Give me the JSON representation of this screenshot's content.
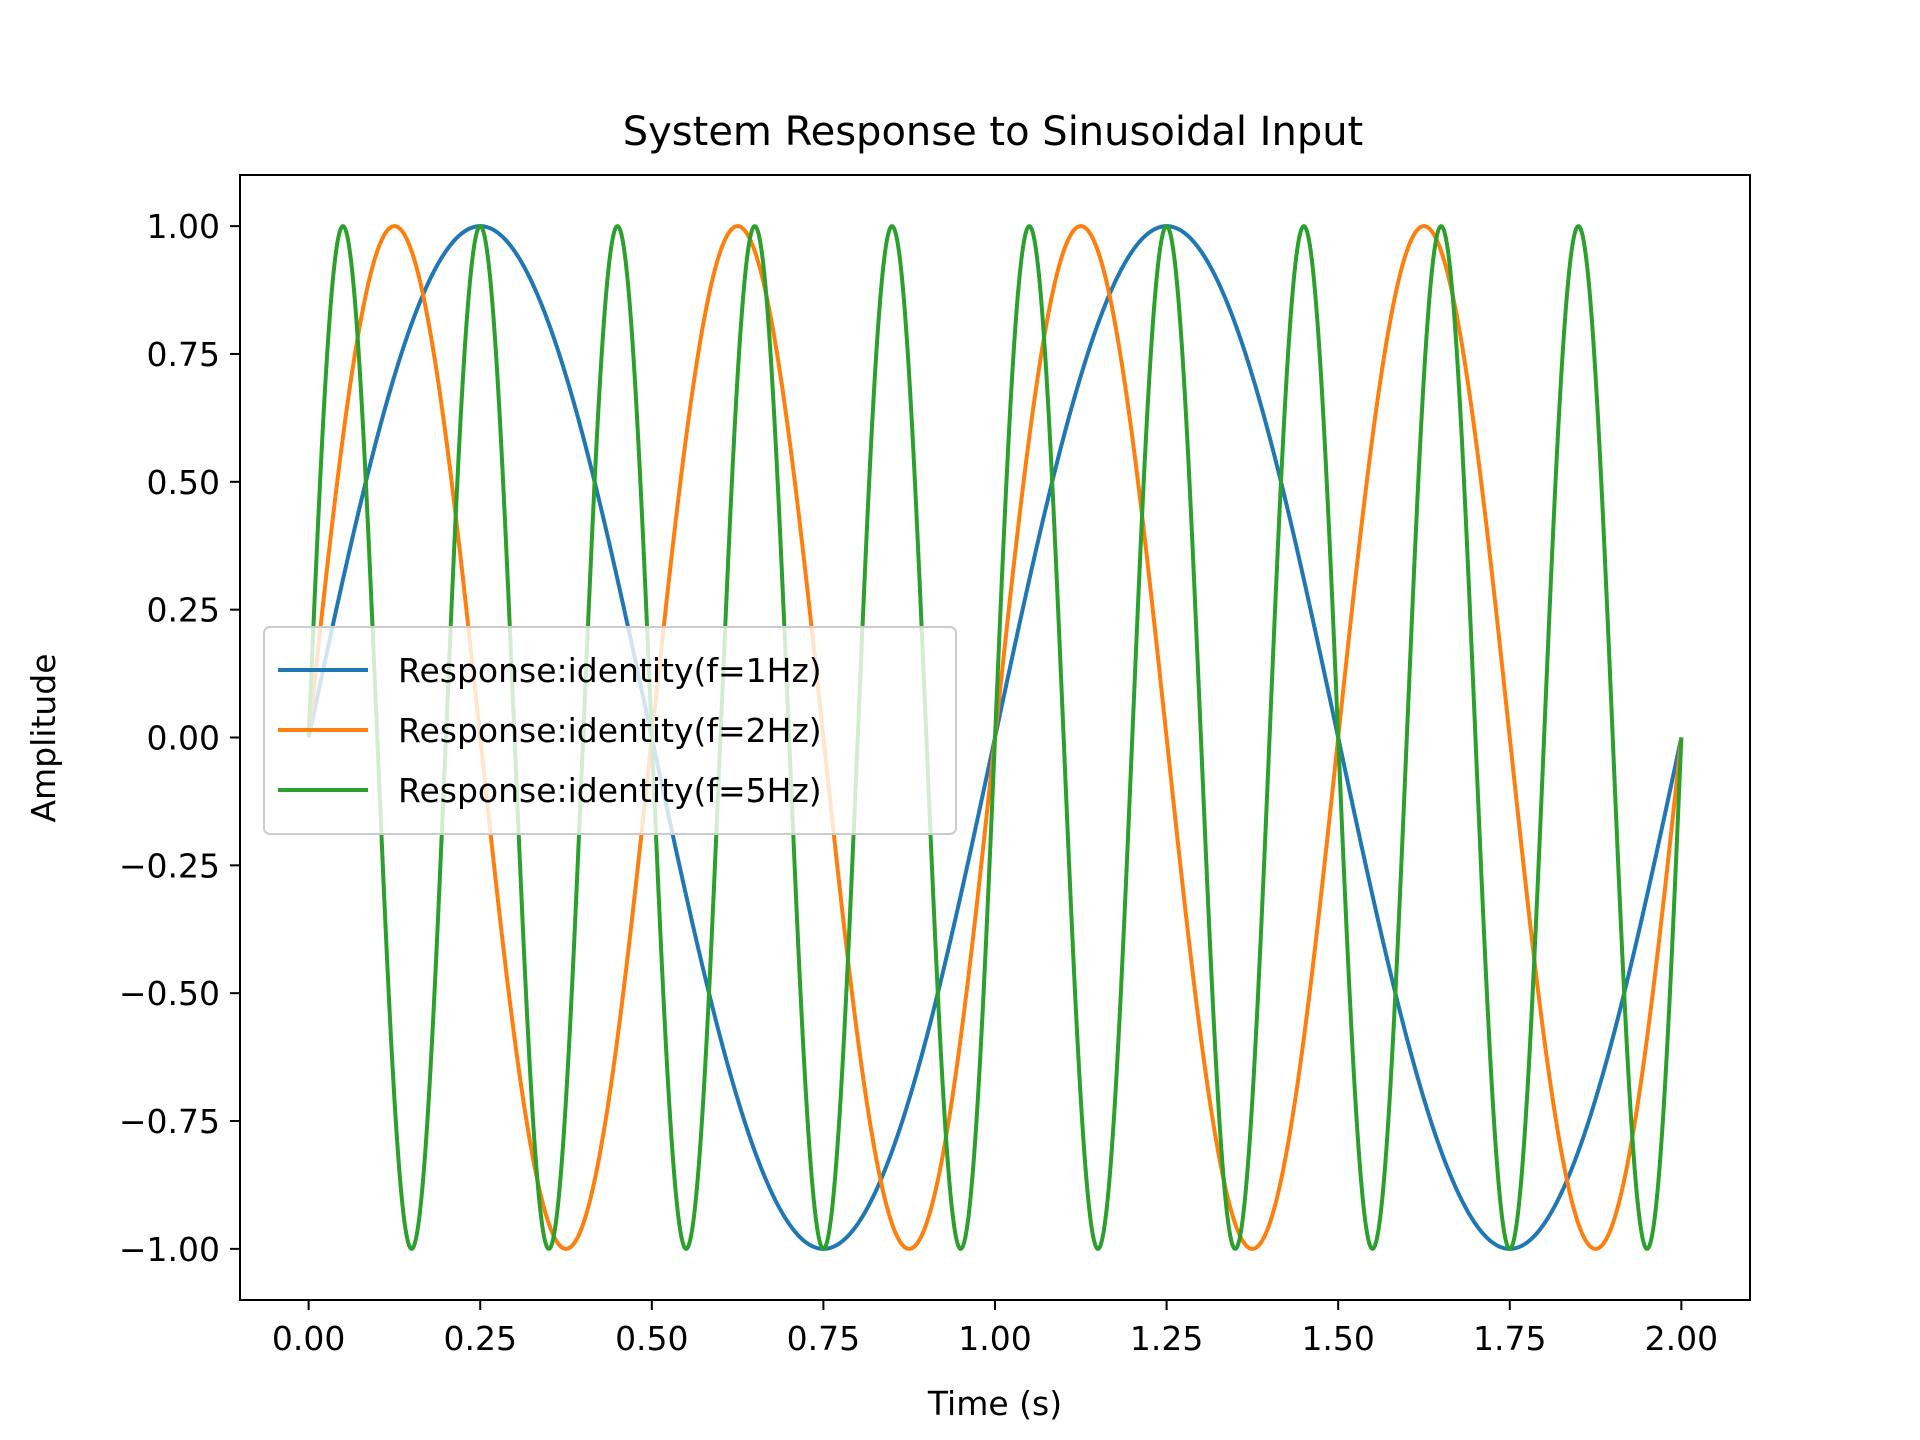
{
  "chart_data": {
    "type": "line",
    "title": "System Response to Sinusoidal Input",
    "xlabel": "Time (s)",
    "ylabel": "Amplitude",
    "xlim": [
      -0.1,
      2.1
    ],
    "ylim": [
      -1.1,
      1.1
    ],
    "x_ticks": [
      0,
      0.25,
      0.5,
      0.75,
      1.0,
      1.25,
      1.5,
      1.75,
      2.0
    ],
    "x_tick_labels": [
      "0.00",
      "0.25",
      "0.50",
      "0.75",
      "1.00",
      "1.25",
      "1.50",
      "1.75",
      "2.00"
    ],
    "y_ticks": [
      1.0,
      0.75,
      0.5,
      0.25,
      0.0,
      -0.25,
      -0.5,
      -0.75,
      -1.0
    ],
    "y_tick_labels": [
      "1.00",
      "0.75",
      "0.50",
      "0.25",
      "0.00",
      "−0.25",
      "−0.50",
      "−0.75",
      "−1.00"
    ],
    "grid": false,
    "legend_position": "center-left",
    "x_range": [
      0,
      2.0
    ],
    "series": [
      {
        "name": "Response:identity(f=1Hz)",
        "frequency": 1,
        "function": "sin(2*pi*f*t)",
        "color": "#1f77b4"
      },
      {
        "name": "Response:identity(f=2Hz)",
        "frequency": 2,
        "function": "sin(2*pi*f*t)",
        "color": "#ff7f0e"
      },
      {
        "name": "Response:identity(f=5Hz)",
        "frequency": 5,
        "function": "sin(2*pi*f*t)",
        "color": "#2ca02c"
      }
    ]
  }
}
